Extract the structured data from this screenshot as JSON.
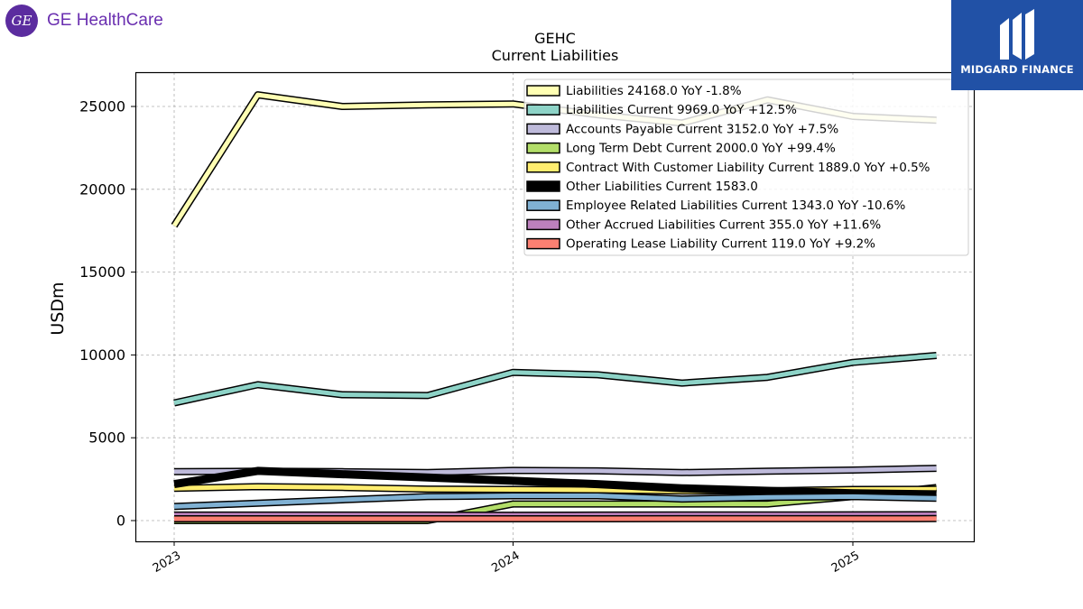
{
  "brand": {
    "left_logo_text": "GE HealthCare",
    "left_logo_mark": "GE",
    "right_logo_text": "MIDGARD FINANCE"
  },
  "chart_data": {
    "type": "line",
    "title": "GEHC",
    "subtitle": "Current  Liabilities",
    "ylabel": "USDm",
    "xlabel": "",
    "ylim": [
      -1300,
      27000
    ],
    "yticks": [
      0,
      5000,
      10000,
      15000,
      20000,
      25000
    ],
    "xticks": [
      "2023",
      "2024",
      "2025"
    ],
    "grid": true,
    "legend_position": "top-right",
    "x": [
      "2023-01-01",
      "2023-04-01",
      "2023-07-01",
      "2023-10-01",
      "2024-01-01",
      "2024-04-01",
      "2024-07-01",
      "2024-10-01",
      "2025-01-01",
      "2025-04-01"
    ],
    "series": [
      {
        "name": "Liabilities",
        "legend": "Liabilities  24168.0 YoY -1.8%",
        "color": "#ffffb3",
        "values": [
          17800,
          25700,
          25000,
          25100,
          25150,
          24500,
          24000,
          25400,
          24400,
          24168
        ]
      },
      {
        "name": "Liabilities Current",
        "legend": "Liabilities Current  9969.0 YoY +12.5%",
        "color": "#8dd3c7",
        "values": [
          7100,
          8200,
          7600,
          7550,
          8950,
          8800,
          8300,
          8650,
          9550,
          9969
        ]
      },
      {
        "name": "Accounts Payable Current",
        "legend": "Accounts Payable Current  3152.0 YoY +7.5%",
        "color": "#bebada",
        "values": [
          2950,
          2980,
          2950,
          2900,
          3030,
          3000,
          2900,
          2980,
          3050,
          3152
        ]
      },
      {
        "name": "Long Term Debt Current",
        "legend": "Long Term Debt Current  2000.0 YoY +99.4%",
        "color": "#b3de69",
        "values": [
          0,
          0,
          0,
          0,
          1000,
          1000,
          1000,
          1000,
          1450,
          2000
        ]
      },
      {
        "name": "Contract With Customer Liability Current",
        "legend": "Contract With Customer Liability Current  1889.0 YoY +0.5%",
        "color": "#ffed6f",
        "values": [
          1950,
          2050,
          2000,
          1900,
          1880,
          1850,
          1780,
          1800,
          1880,
          1889
        ]
      },
      {
        "name": "Other Liabilities Current",
        "legend": "Other Liabilities Current  1583.0",
        "color": "#000000",
        "values": [
          2200,
          3000,
          2800,
          2600,
          2400,
          2200,
          1950,
          1800,
          1650,
          1583
        ]
      },
      {
        "name": "Employee Related Liabilities Current",
        "legend": "Employee Related Liabilities Current  1343.0 YoY -10.6%",
        "color": "#80b1d3",
        "values": [
          850,
          1050,
          1250,
          1450,
          1500,
          1500,
          1300,
          1400,
          1450,
          1343
        ]
      },
      {
        "name": "Other Accrued Liabilities Current",
        "legend": "Other Accrued Liabilities Current  355.0 YoY +11.6%",
        "color": "#bc80bd",
        "values": [
          330,
          330,
          330,
          330,
          320,
          330,
          340,
          340,
          350,
          355
        ]
      },
      {
        "name": "Operating Lease Liability Current",
        "legend": "Operating Lease Liability Current  119.0 YoY +9.2%",
        "color": "#fb8072",
        "values": [
          110,
          110,
          110,
          109,
          109,
          110,
          112,
          115,
          117,
          119
        ]
      }
    ]
  }
}
